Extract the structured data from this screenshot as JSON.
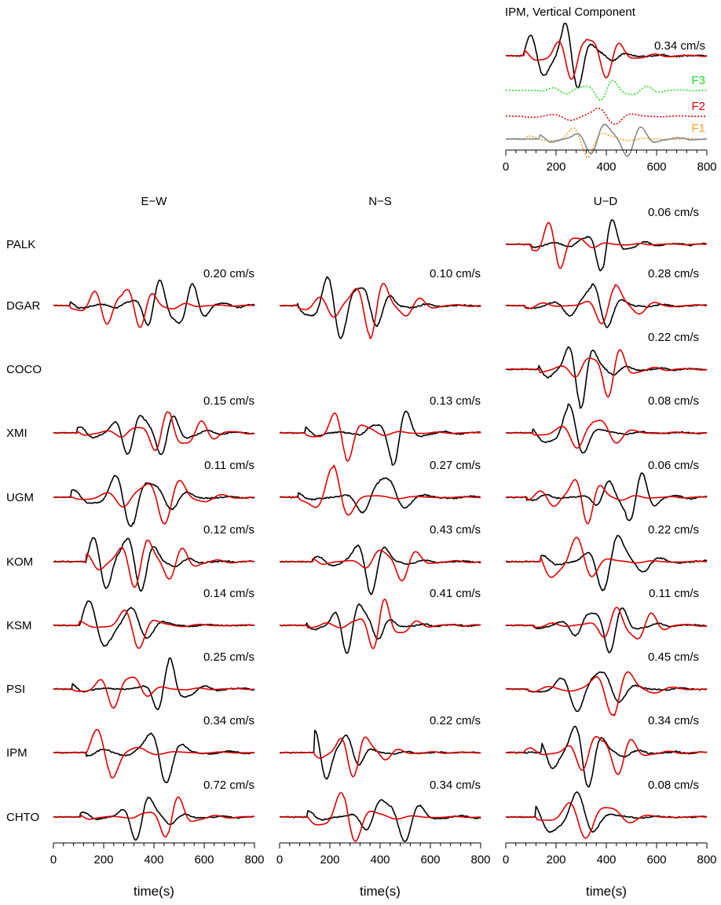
{
  "chart_data": {
    "type": "line",
    "title": "",
    "xlabel": "time(s)",
    "xlim": [
      0,
      800
    ],
    "xticks": [
      0,
      200,
      400,
      600,
      800
    ],
    "components": [
      "E−W",
      "N−S",
      "U−D"
    ],
    "series_colors": {
      "observed": "#000000",
      "synthetic": "#e00000"
    },
    "stations": [
      {
        "name": "PALK",
        "amps": [
          null,
          null,
          "0.06 cm/s"
        ]
      },
      {
        "name": "DGAR",
        "amps": [
          "0.20 cm/s",
          "0.10 cm/s",
          "0.28 cm/s"
        ]
      },
      {
        "name": "COCO",
        "amps": [
          null,
          null,
          "0.22 cm/s"
        ]
      },
      {
        "name": "XMI",
        "amps": [
          "0.15 cm/s",
          "0.13 cm/s",
          "0.08 cm/s"
        ]
      },
      {
        "name": "UGM",
        "amps": [
          "0.11 cm/s",
          "0.27 cm/s",
          "0.06 cm/s"
        ]
      },
      {
        "name": "KOM",
        "amps": [
          "0.12 cm/s",
          "0.43 cm/s",
          "0.22 cm/s"
        ]
      },
      {
        "name": "KSM",
        "amps": [
          "0.14 cm/s",
          "0.41 cm/s",
          "0.11 cm/s"
        ]
      },
      {
        "name": "PSI",
        "amps": [
          "0.25 cm/s",
          null,
          "0.45 cm/s"
        ]
      },
      {
        "name": "IPM",
        "amps": [
          "0.34 cm/s",
          "0.22 cm/s",
          "0.34 cm/s"
        ]
      },
      {
        "name": "CHTO",
        "amps": [
          "0.72 cm/s",
          "0.34 cm/s",
          "0.08 cm/s"
        ]
      }
    ],
    "inset": {
      "title": "IPM, Vertical Component",
      "amp": "0.34 cm/s",
      "subfaults": [
        {
          "name": "F3",
          "color": "#22dd22"
        },
        {
          "name": "F2",
          "color": "#e00000"
        },
        {
          "name": "F1",
          "color": "#f0a020"
        }
      ]
    }
  }
}
